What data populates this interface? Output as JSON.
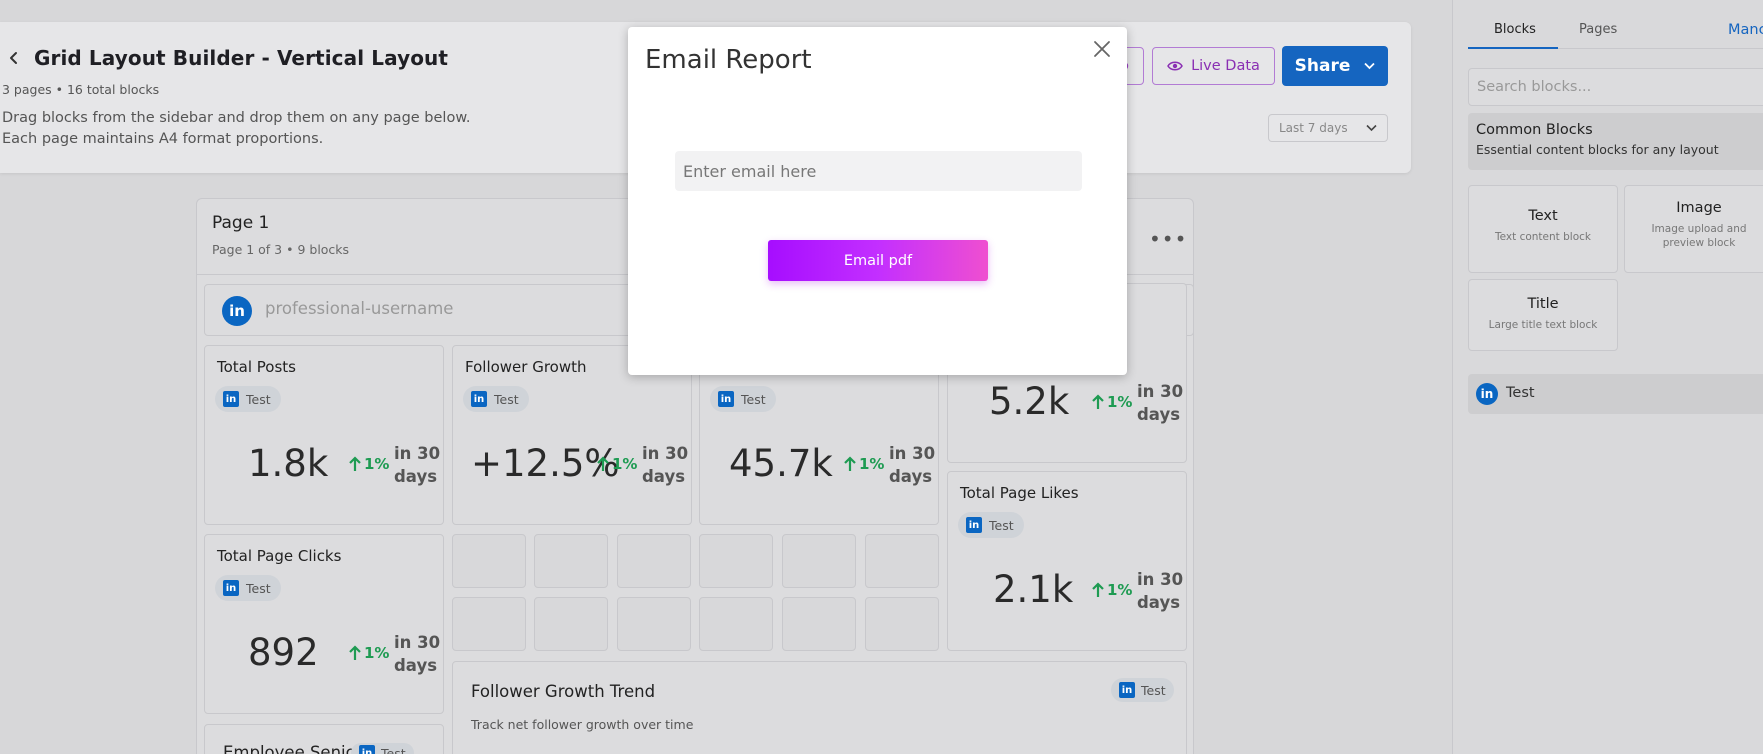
{
  "header": {
    "title": "Grid Layout Builder - Vertical Layout",
    "meta": "3 pages • 16 total blocks",
    "description_line1": "Drag blocks from the sidebar and drop them on any page below.",
    "description_line2": "Each page maintains A4 format proportions.",
    "live_data_label": "Live Data",
    "share_label": "Share",
    "date_range": "Last 7 days"
  },
  "page": {
    "title": "Page 1",
    "subtitle": "Page 1 of 3 • 9 blocks",
    "profile_name": "professional-username"
  },
  "metrics": [
    {
      "title": "Total Posts",
      "tag": "Test",
      "value": "1.8k",
      "change": "1%",
      "period_line1": "in 30",
      "period_line2": "days"
    },
    {
      "title": "Follower Growth",
      "tag": "Test",
      "value": "+12.5%",
      "change": "1%",
      "period_line1": "in 30",
      "period_line2": "days"
    },
    {
      "title": "",
      "tag": "Test",
      "value": "45.7k",
      "change": "1%",
      "period_line1": "in 30",
      "period_line2": "days"
    },
    {
      "title": "",
      "tag": "",
      "value": "5.2k",
      "change": "1%",
      "period_line1": "in 30",
      "period_line2": "days"
    },
    {
      "title": "Total Page Likes",
      "tag": "Test",
      "value": "2.1k",
      "change": "1%",
      "period_line1": "in 30",
      "period_line2": "days"
    },
    {
      "title": "Total Page Clicks",
      "tag": "Test",
      "value": "892",
      "change": "1%",
      "period_line1": "in 30",
      "period_line2": "days"
    }
  ],
  "trend": {
    "title": "Follower Growth Trend",
    "subtitle": "Track net follower growth over time",
    "tag": "Test"
  },
  "employee_card": {
    "title": "Employee Senior",
    "tag": "Test"
  },
  "sidebar": {
    "tabs": [
      "Blocks",
      "Pages",
      "Manc"
    ],
    "search_placeholder": "Search blocks...",
    "section_title": "Common Blocks",
    "section_desc": "Essential content blocks for any layout",
    "blocks": [
      {
        "title": "Text",
        "desc": "Text content block"
      },
      {
        "title": "Image",
        "desc": "Image upload and preview block"
      },
      {
        "title": "Title",
        "desc": "Large title text block"
      }
    ],
    "account_name": "Test"
  },
  "modal": {
    "title": "Email Report",
    "email_placeholder": "Enter email here",
    "email_value": "",
    "submit_label": "Email pdf"
  },
  "colors": {
    "accent_blue": "#1565c0",
    "linkedin": "#0a66c2",
    "positive_green": "#1e9b52",
    "purple": "#8a2fb3",
    "gradient_start": "#a60dff",
    "gradient_end": "#ef4fd0"
  }
}
